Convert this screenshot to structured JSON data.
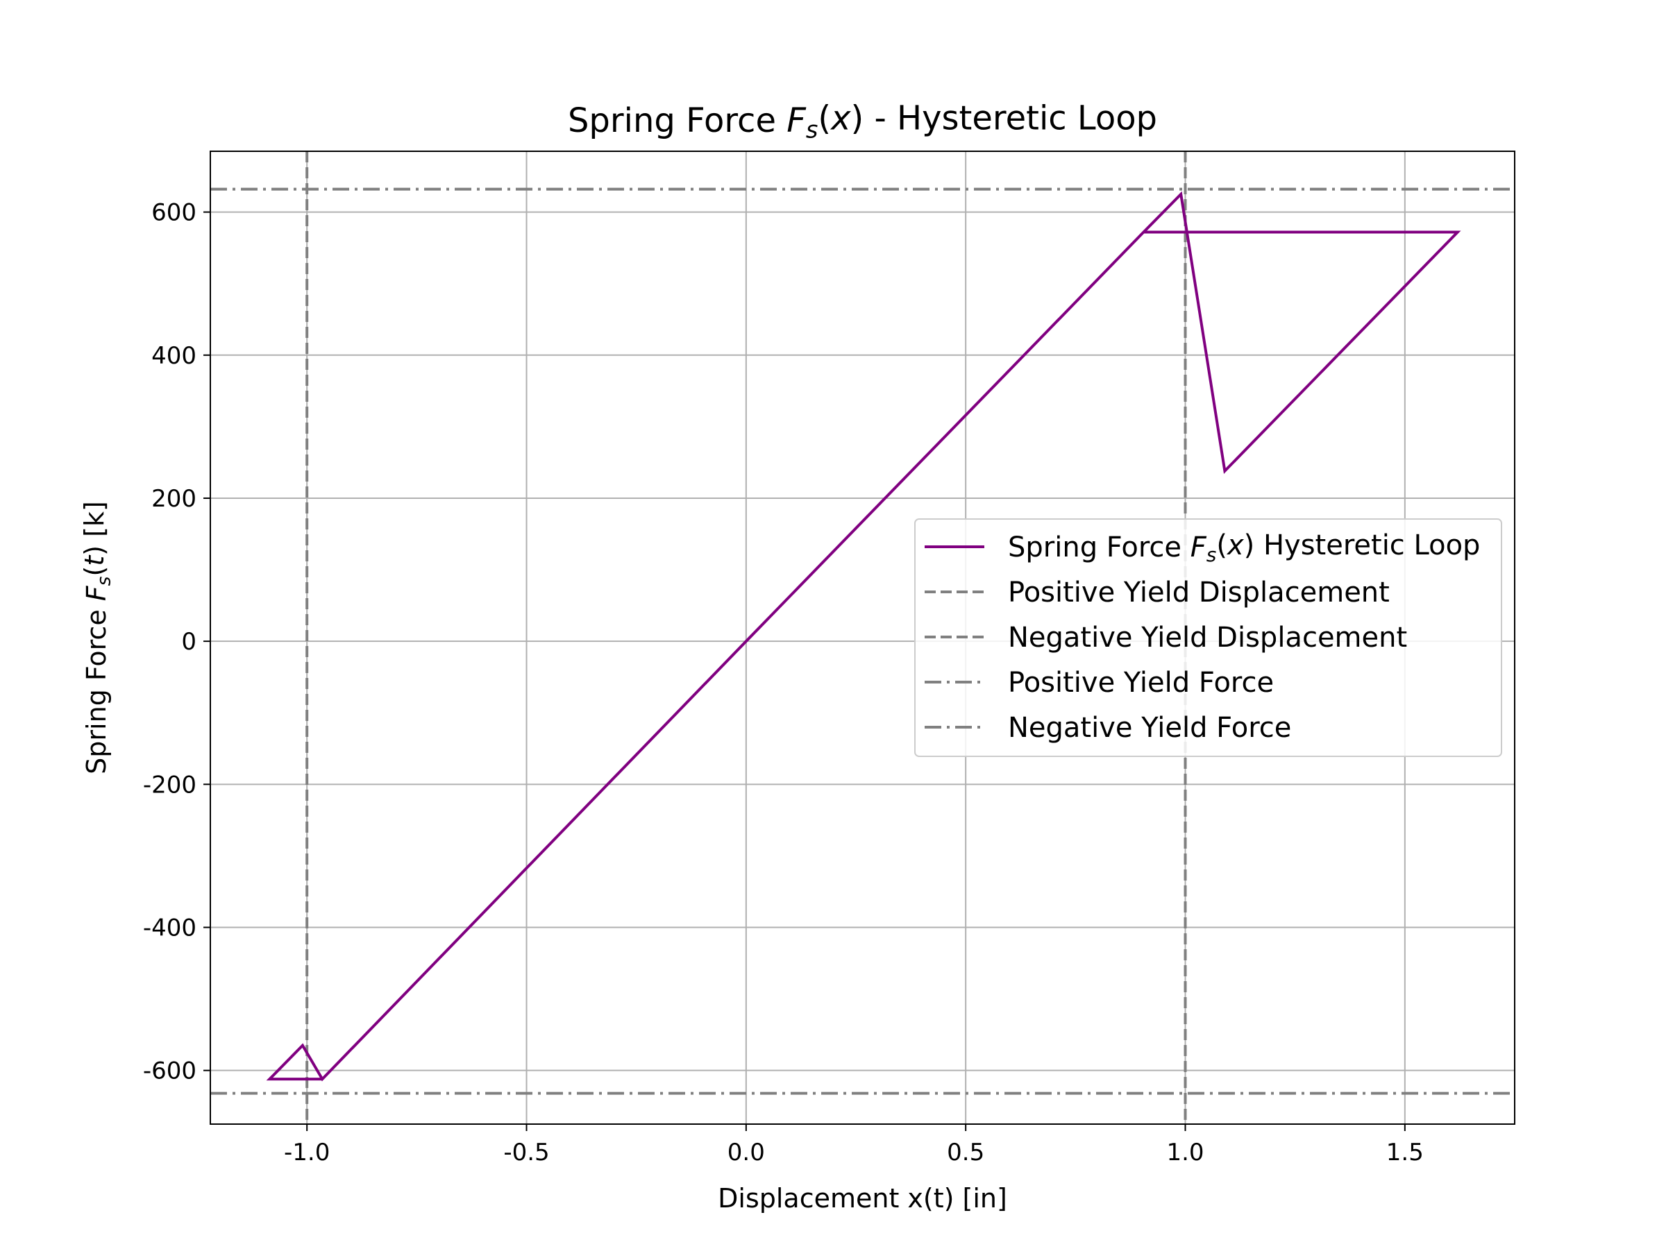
{
  "chart_data": {
    "type": "line",
    "title": "Spring Force F_s(x) - Hysteretic Loop",
    "xlabel": "Displacement x(t) [in]",
    "ylabel": "Spring Force F_s(t) [k]",
    "xlim": [
      -1.22,
      1.75
    ],
    "ylim": [
      -675,
      685
    ],
    "xticks": [
      -1.0,
      -0.5,
      0.0,
      0.5,
      1.0,
      1.5
    ],
    "xtick_labels": [
      "-1.0",
      "-0.5",
      "0.0",
      "0.5",
      "1.0",
      "1.5"
    ],
    "yticks": [
      -600,
      -400,
      -200,
      0,
      200,
      400,
      600
    ],
    "ytick_labels": [
      "-600",
      "-400",
      "-200",
      "0",
      "200",
      "400",
      "600"
    ],
    "grid": true,
    "legend_position": "center-right",
    "series": [
      {
        "name": "Spring Force F_s(x) Hysteretic Loop",
        "color": "#800080",
        "style": "solid",
        "x": [
          0.0,
          0.905,
          0.99,
          1.09,
          1.62,
          0.905,
          0.0,
          -0.965,
          -1.085,
          -1.01,
          -0.965,
          0.0
        ],
        "y": [
          0,
          572,
          625,
          238,
          572,
          572,
          0,
          -612,
          -612,
          -565,
          -612,
          0
        ]
      },
      {
        "name": "Positive Yield Displacement",
        "color": "#808080",
        "style": "dashed",
        "orientation": "vertical",
        "value": 1.0
      },
      {
        "name": "Negative Yield Displacement",
        "color": "#808080",
        "style": "dashed",
        "orientation": "vertical",
        "value": -1.0
      },
      {
        "name": "Positive Yield Force",
        "color": "#808080",
        "style": "dashdot",
        "orientation": "horizontal",
        "value": 632
      },
      {
        "name": "Negative Yield Force",
        "color": "#808080",
        "style": "dashdot",
        "orientation": "horizontal",
        "value": -632
      }
    ]
  }
}
